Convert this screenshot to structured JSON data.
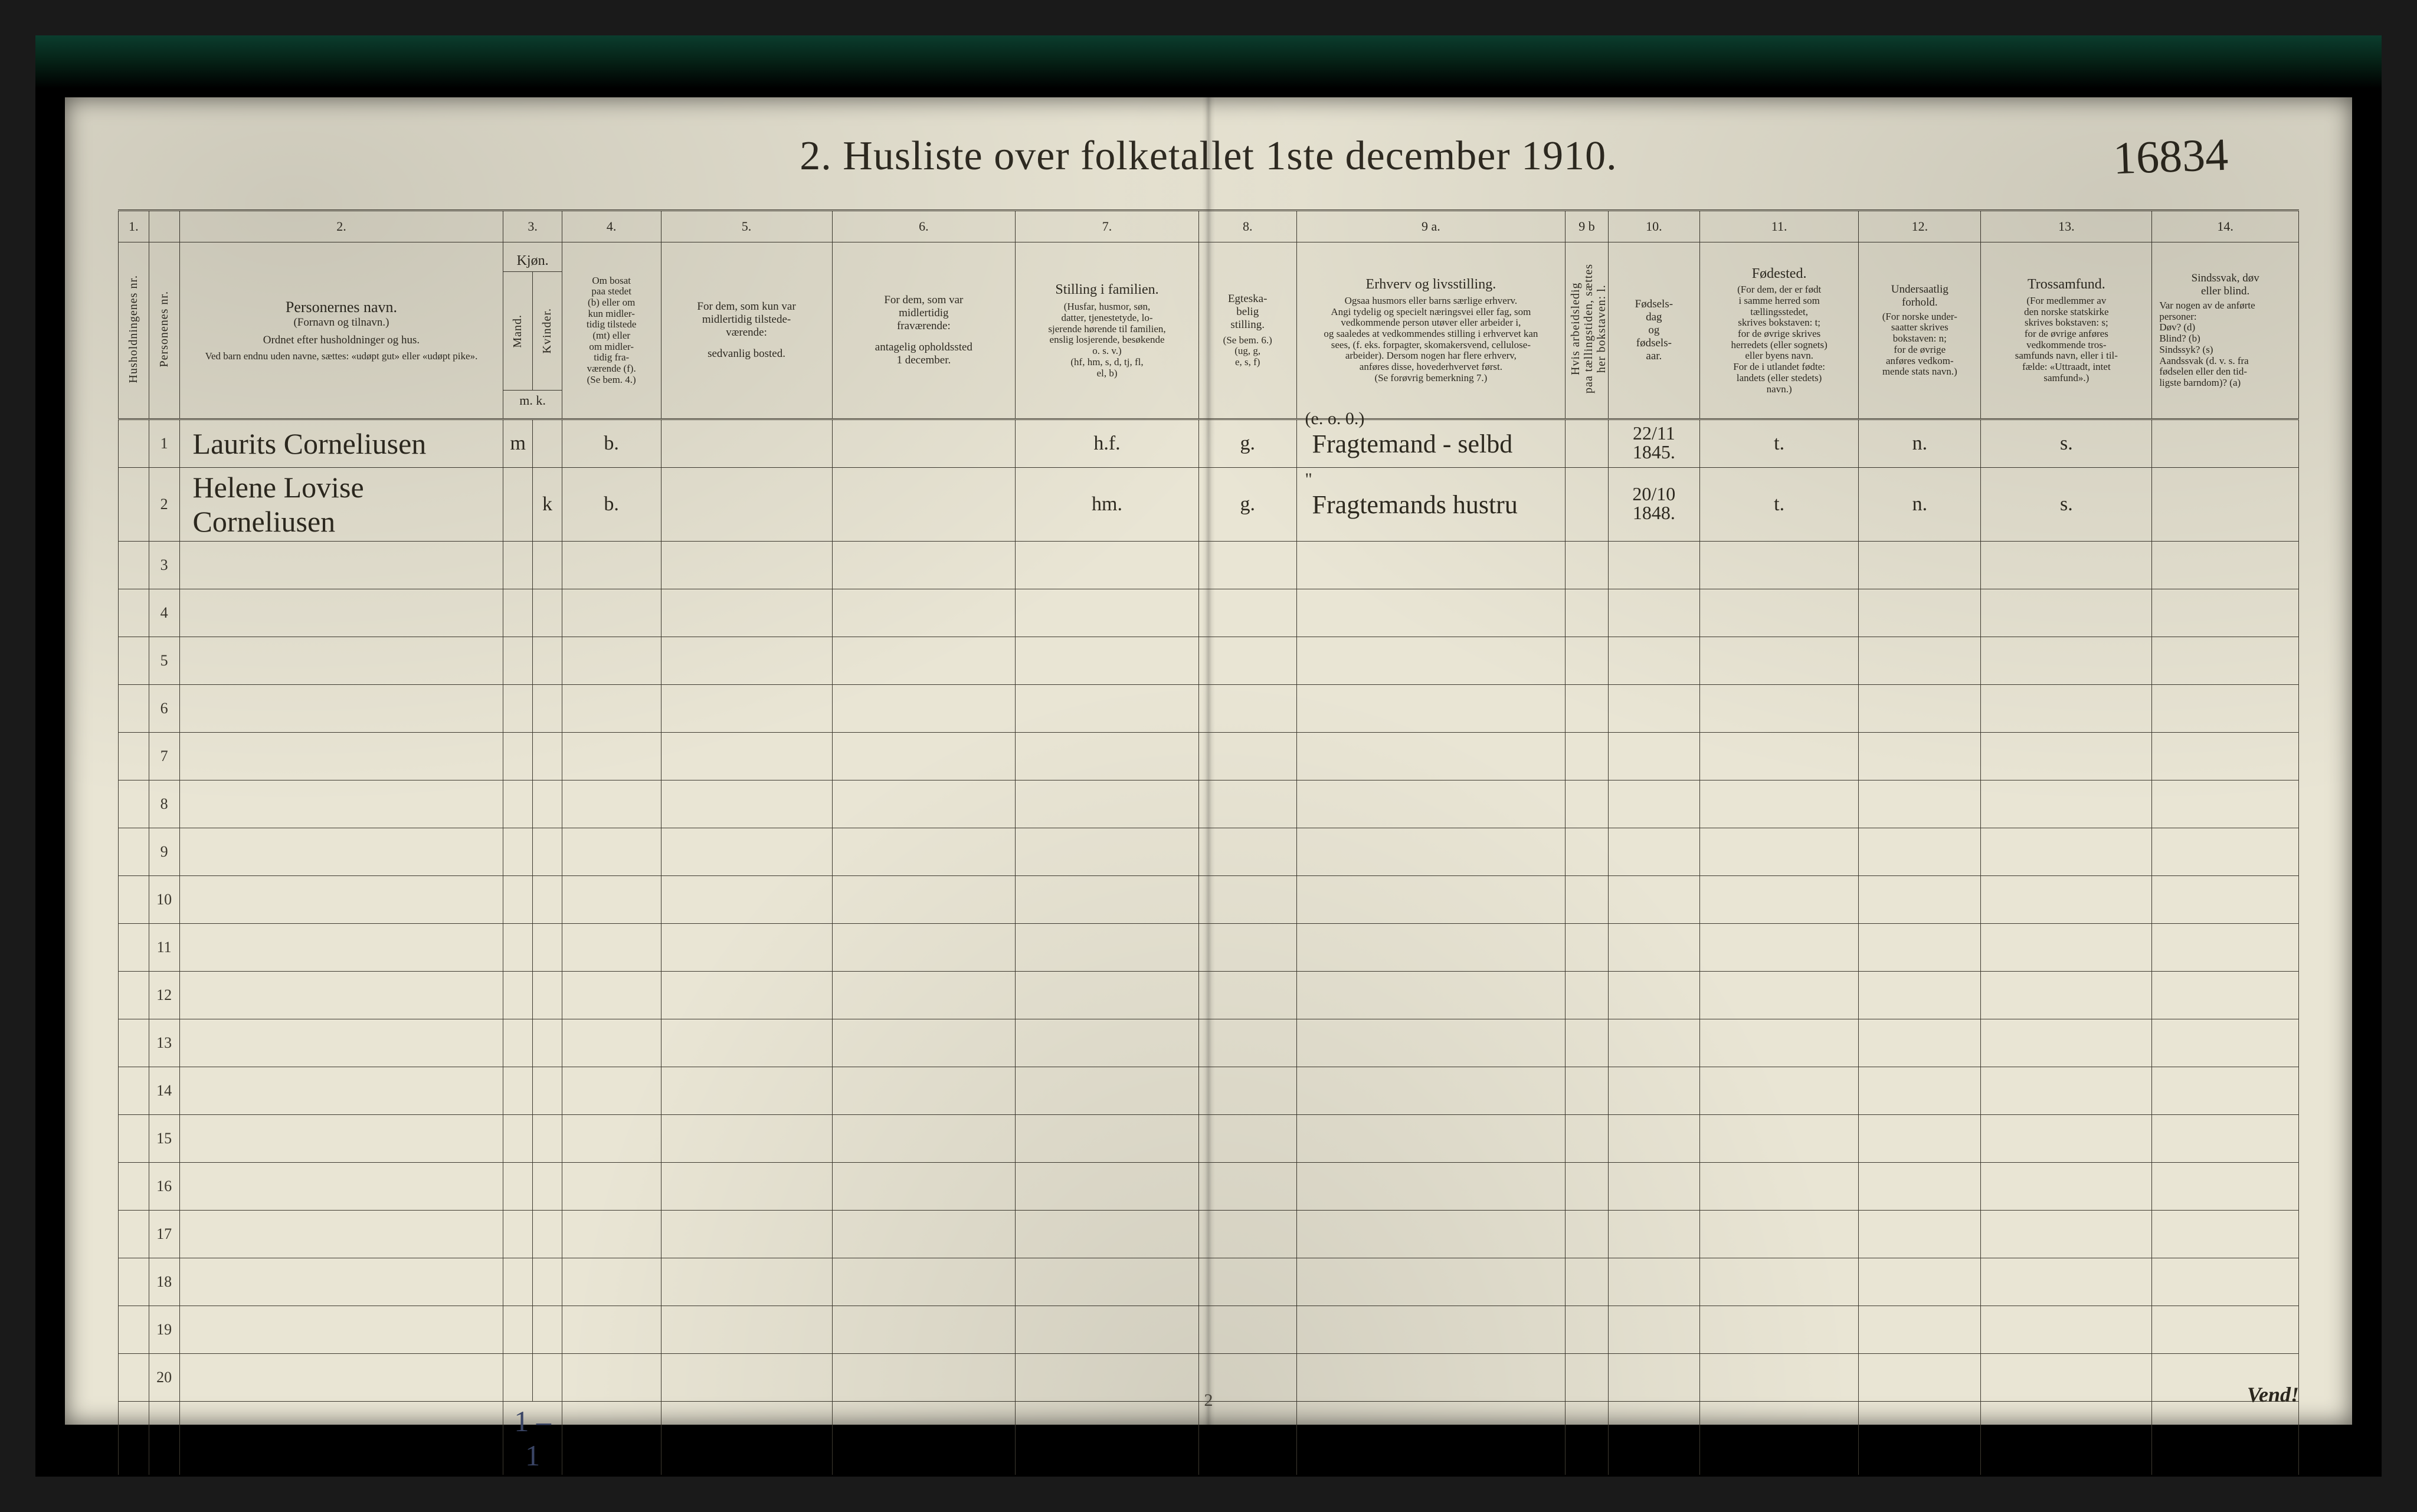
{
  "page": {
    "title": "2.  Husliste over folketallet 1ste december 1910.",
    "annotation_top_right": "16834",
    "footer_page_number": "2",
    "footer_vend": "Vend!",
    "paper_bg": "#e9e5d4",
    "ink": "#2f2b22",
    "handwriting_color": "#2e2a20"
  },
  "column_numbers": [
    "1.",
    "",
    "2.",
    "3.",
    "",
    "4.",
    "5.",
    "6.",
    "7.",
    "8.",
    "9 a.",
    "9 b",
    "10.",
    "11.",
    "12.",
    "13.",
    "14."
  ],
  "headers": {
    "c1": "Husholdningenes nr.",
    "c2": "Personenes nr.",
    "c3_title": "Personernes navn.",
    "c3_sub1": "(Fornavn og tilnavn.)",
    "c3_sub2": "Ordnet efter husholdninger og hus.",
    "c3_sub3": "Ved barn endnu uden navne, sættes: «udøpt gut» eller «udøpt pike».",
    "c4_title": "Kjøn.",
    "c4_m": "Mand.",
    "c4_k": "Kvinder.",
    "c4_foot": "m.  k.",
    "c5_title": "Om bosat\npaa stedet\n(b) eller om\nkun midler-\ntidig tilstede\n(mt) eller\nom midler-\ntidig fra-\nværende (f).\n(Se bem. 4.)",
    "c6_title": "For dem, som kun var\nmidlertidig tilstede-\nværende:",
    "c6_sub": "sedvanlig bosted.",
    "c7_title": "For dem, som var\nmidlertidig\nfraværende:",
    "c7_sub": "antagelig opholdssted\n1 december.",
    "c8_title": "Stilling i familien.",
    "c8_sub": "(Husfar, husmor, søn,\ndatter, tjenestetyde, lo-\nsjerende hørende til familien,\nenslig losjerende, besøkende\no. s. v.)\n(hf, hm, s, d, tj, fl,\nel, b)",
    "c9_title": "Egteska-\nbelig\nstilling.",
    "c9_sub": "(Se bem. 6.)\n(ug, g,\ne, s, f)",
    "c10_title": "Erhverv og livsstilling.",
    "c10_sub": "Ogsaa husmors eller barns særlige erhverv.\nAngi tydelig og specielt næringsvei eller fag, som\nvedkommende person utøver eller arbeider i,\nog saaledes at vedkommendes stilling i erhvervet kan\nsees, (f. eks. forpagter, skomakersvend, cellulose-\narbeider). Dersom nogen har flere erhverv,\nanføres disse, hovederhvervet først.\n(Se forøvrig bemerkning 7.)",
    "c10b": "Hvis arbeidsledig\npaa tællingstiden, sættes\nher bokstaven: l.",
    "c11_title": "Fødsels-\ndag\nog\nfødsels-\naar.",
    "c12_title": "Fødested.",
    "c12_sub": "(For dem, der er født\ni samme herred som\ntællingsstedet,\nskrives bokstaven: t;\nfor de øvrige skrives\nherredets (eller sognets)\neller byens navn.\nFor de i utlandet fødte:\nlandets (eller stedets)\nnavn.)",
    "c13_title": "Undersaatlig\nforhold.",
    "c13_sub": "(For norske under-\nsaatter skrives\nbokstaven: n;\nfor de øvrige\nanføres vedkom-\nmende stats navn.)",
    "c14_title": "Trossamfund.",
    "c14_sub": "(For medlemmer av\nden norske statskirke\nskrives bokstaven: s;\nfor de øvrige anføres\nvedkommende tros-\nsamfunds navn, eller i til-\nfælde: «Uttraadt, intet\nsamfund».)",
    "c15_title": "Sindssvak, døv\neller blind.",
    "c15_sub": "Var nogen av de anførte\npersoner:\nDøv?        (d)\nBlind?       (b)\nSindssyk?  (s)\nAandssvak (d. v. s. fra\nfødselen eller den tid-\nligste barndom)?  (a)"
  },
  "rows": [
    {
      "num": "1",
      "name": "Laurits Corneliusen",
      "sex_m": "m",
      "sex_k": "",
      "bosat": "b.",
      "col6": "",
      "col7": "",
      "family": "h.f.",
      "marital": "g.",
      "occupation_note": "(e. o. 0.)",
      "occupation": "Fragtemand - selbd",
      "c10b": "",
      "birth": "22/11\n1845.",
      "birthplace": "t.",
      "nation": "n.",
      "faith": "s.",
      "c15": ""
    },
    {
      "num": "2",
      "name": "Helene Lovise Corneliusen",
      "sex_m": "",
      "sex_k": "k",
      "bosat": "b.",
      "col6": "",
      "col7": "",
      "family": "hm.",
      "marital": "g.",
      "occupation_note": "\"",
      "occupation": "Fragtemands hustru",
      "c10b": "",
      "birth": "20/10\n1848.",
      "birthplace": "t.",
      "nation": "n.",
      "faith": "s.",
      "c15": ""
    }
  ],
  "empty_row_numbers": [
    "3",
    "4",
    "5",
    "6",
    "7",
    "8",
    "9",
    "10",
    "11",
    "12",
    "13",
    "14",
    "15",
    "16",
    "17",
    "18",
    "19",
    "20"
  ],
  "totals_mark": "1 – 1"
}
